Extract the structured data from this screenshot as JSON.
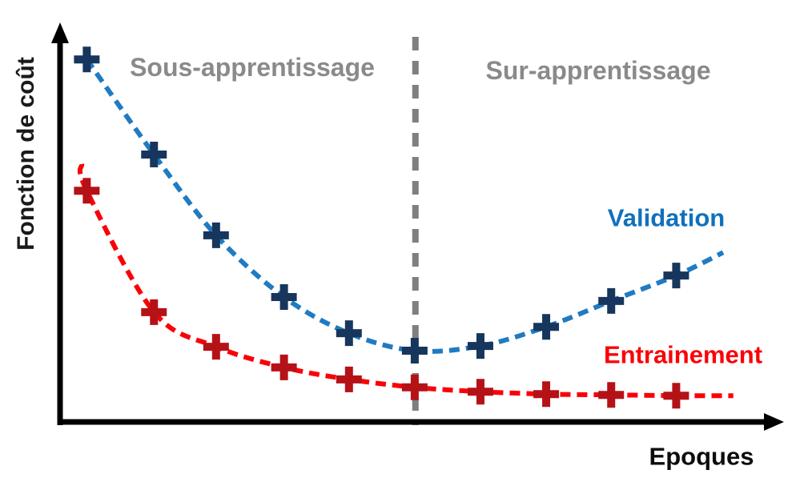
{
  "chart_data": {
    "type": "line",
    "title": "",
    "xlabel": "Epoques",
    "ylabel": "Fonction de coût",
    "annotations": {
      "left_region": "Sous-apprentissage",
      "right_region": "Sur-apprentissage"
    },
    "axis": {
      "x_range": [
        0,
        100
      ],
      "y_range": [
        0,
        100
      ],
      "ticks": "none",
      "grid": false,
      "axis_color": "#000000"
    },
    "boundary_x": 49.2,
    "boundary_line_color": "#7f7f7f",
    "series": [
      {
        "name": "Validation",
        "marker": "plus",
        "marker_color": "#17365d",
        "line_color": "#1f7bc2",
        "label_color": "#0f71bd",
        "x": [
          3.7,
          13.0,
          21.6,
          31.0,
          40.0,
          49.1,
          58.2,
          67.3,
          76.3,
          85.3
        ],
        "y": [
          91.1,
          67.2,
          46.9,
          31.4,
          22.3,
          17.9,
          19.1,
          23.9,
          30.4,
          36.8
        ],
        "curve_end_extension": {
          "x": 91.8,
          "y": 42.6
        }
      },
      {
        "name": "Entrainement",
        "marker": "plus",
        "marker_color": "#b51218",
        "line_color": "#fb0007",
        "label_color": "#fb0007",
        "x": [
          3.7,
          13.0,
          21.6,
          31.0,
          40.0,
          49.1,
          58.2,
          67.3,
          76.3,
          85.3
        ],
        "y": [
          58.1,
          27.6,
          18.9,
          13.7,
          10.7,
          8.7,
          7.6,
          7.0,
          6.8,
          6.6
        ],
        "curve_start_extension": {
          "x": 3.0,
          "y": 64.8
        },
        "curve_end_extension": {
          "x": 93.2,
          "y": 6.6
        }
      }
    ]
  }
}
